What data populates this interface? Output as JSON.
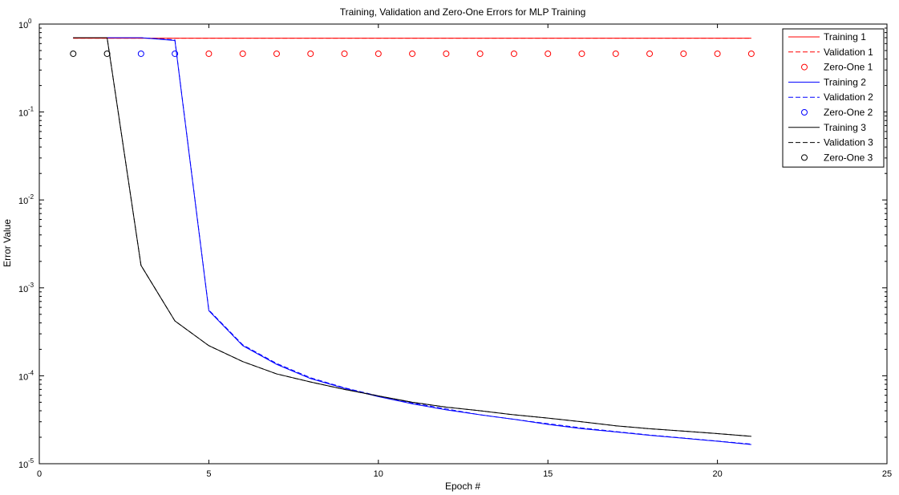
{
  "chart_data": {
    "type": "line",
    "title": "Training, Validation and Zero-One Errors for MLP Training",
    "xlabel": "Epoch #",
    "ylabel": "Error Value",
    "xlim": [
      0,
      25
    ],
    "ylim": [
      1e-05,
      1
    ],
    "yscale": "log",
    "grid": false,
    "legend_position": "top-right",
    "x_ticks": [
      0,
      5,
      10,
      15,
      20,
      25
    ],
    "y_ticks": [
      {
        "value": 1e-05,
        "base": "10",
        "exp": "-5"
      },
      {
        "value": 0.0001,
        "base": "10",
        "exp": "-4"
      },
      {
        "value": 0.001,
        "base": "10",
        "exp": "-3"
      },
      {
        "value": 0.01,
        "base": "10",
        "exp": "-2"
      },
      {
        "value": 0.1,
        "base": "10",
        "exp": "-1"
      },
      {
        "value": 1,
        "base": "10",
        "exp": "0"
      }
    ],
    "x": [
      1,
      2,
      3,
      4,
      5,
      6,
      7,
      8,
      9,
      10,
      11,
      12,
      13,
      14,
      15,
      16,
      17,
      18,
      19,
      20,
      21
    ],
    "series": [
      {
        "name": "Training 1",
        "color": "#ff0000",
        "style": "solid",
        "marker": "none",
        "values": [
          0.69,
          0.69,
          0.69,
          0.69,
          0.69,
          0.69,
          0.69,
          0.69,
          0.69,
          0.69,
          0.69,
          0.69,
          0.69,
          0.69,
          0.69,
          0.69,
          0.69,
          0.69,
          0.69,
          0.69,
          0.69
        ]
      },
      {
        "name": "Validation 1",
        "color": "#ff0000",
        "style": "dashed",
        "marker": "none",
        "values": [
          0.69,
          0.69,
          0.69,
          0.69,
          0.69,
          0.69,
          0.69,
          0.69,
          0.69,
          0.69,
          0.69,
          0.69,
          0.69,
          0.69,
          0.69,
          0.69,
          0.69,
          0.69,
          0.69,
          0.69,
          0.69
        ]
      },
      {
        "name": "Zero-One 1",
        "color": "#ff0000",
        "style": "none",
        "marker": "circle",
        "values": [
          null,
          null,
          null,
          null,
          0.46,
          0.46,
          0.46,
          0.46,
          0.46,
          0.46,
          0.46,
          0.46,
          0.46,
          0.46,
          0.46,
          0.46,
          0.46,
          0.46,
          0.46,
          0.46,
          0.46
        ]
      },
      {
        "name": "Training 2",
        "color": "#0000ff",
        "style": "solid",
        "marker": "none",
        "values": [
          0.7,
          0.7,
          0.7,
          0.65,
          0.00055,
          0.00022,
          0.000135,
          9.3e-05,
          7.2e-05,
          5.8e-05,
          4.8e-05,
          4.1e-05,
          3.6e-05,
          3.2e-05,
          2.8e-05,
          2.5e-05,
          2.3e-05,
          2.1e-05,
          1.95e-05,
          1.8e-05,
          1.65e-05
        ]
      },
      {
        "name": "Validation 2",
        "color": "#0000ff",
        "style": "dashed",
        "marker": "none",
        "values": [
          0.7,
          0.7,
          0.7,
          0.66,
          0.00056,
          0.000225,
          0.000138,
          9.5e-05,
          7.3e-05,
          5.9e-05,
          4.9e-05,
          4.2e-05,
          3.6e-05,
          3.2e-05,
          2.85e-05,
          2.55e-05,
          2.32e-05,
          2.12e-05,
          1.96e-05,
          1.81e-05,
          1.67e-05
        ]
      },
      {
        "name": "Zero-One 2",
        "color": "#0000ff",
        "style": "none",
        "marker": "circle",
        "values": [
          null,
          null,
          0.46,
          0.46,
          null,
          null,
          null,
          null,
          null,
          null,
          null,
          null,
          null,
          null,
          null,
          null,
          null,
          null,
          null,
          null,
          null
        ]
      },
      {
        "name": "Training 3",
        "color": "#000000",
        "style": "solid",
        "marker": "none",
        "values": [
          0.7,
          0.7,
          0.0018,
          0.00042,
          0.00022,
          0.000145,
          0.000105,
          8.5e-05,
          7e-05,
          5.9e-05,
          5e-05,
          4.4e-05,
          4e-05,
          3.6e-05,
          3.3e-05,
          3e-05,
          2.7e-05,
          2.5e-05,
          2.35e-05,
          2.2e-05,
          2.05e-05
        ]
      },
      {
        "name": "Validation 3",
        "color": "#000000",
        "style": "dashed",
        "marker": "none",
        "values": [
          0.7,
          0.7,
          0.0018,
          0.00042,
          0.00022,
          0.000145,
          0.000105,
          8.5e-05,
          7e-05,
          5.9e-05,
          5e-05,
          4.4e-05,
          4e-05,
          3.6e-05,
          3.3e-05,
          3e-05,
          2.7e-05,
          2.5e-05,
          2.35e-05,
          2.2e-05,
          2.05e-05
        ]
      },
      {
        "name": "Zero-One 3",
        "color": "#000000",
        "style": "none",
        "marker": "circle",
        "values": [
          0.46,
          0.46,
          null,
          null,
          null,
          null,
          null,
          null,
          null,
          null,
          null,
          null,
          null,
          null,
          null,
          null,
          null,
          null,
          null,
          null,
          null
        ]
      }
    ]
  }
}
